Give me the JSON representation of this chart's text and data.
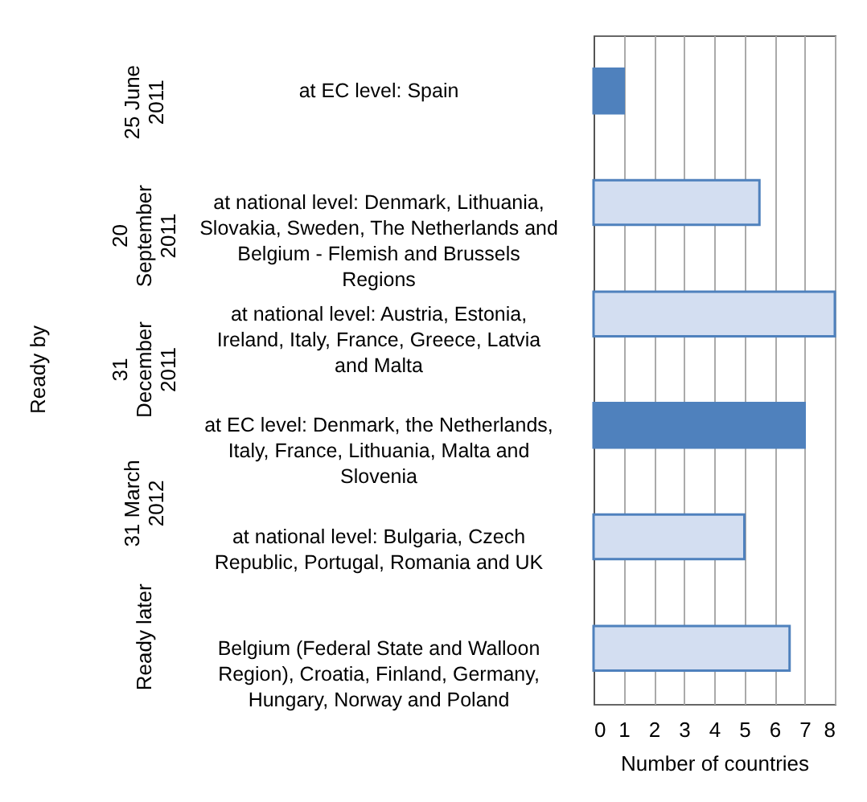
{
  "chart_data": {
    "type": "bar",
    "orientation": "horizontal",
    "xlabel": "Number of countries",
    "categories": [
      "at EC level: Spain",
      "at national level:  Denmark, Lithuania, Slovakia, Sweden, The Netherlands and Belgium - Flemish and Brussels Regions",
      "at national level: Austria, Estonia, Ireland, Italy, France, Greece, Latvia and Malta",
      "at EC level: Denmark, the Netherlands, Italy, France, Lithuania, Malta and Slovenia",
      "at national level: Bulgaria, Czech Republic, Portugal, Romania and UK",
      "Belgium (Federal State and Walloon Region),  Croatia, Finland, Germany, Hungary, Norway and Poland"
    ],
    "values": [
      1,
      5.5,
      8,
      7,
      5,
      6.5
    ],
    "colors": [
      "#4f81bd",
      "#d3def1",
      "#d3def1",
      "#4f81bd",
      "#d3def1",
      "#d3def1"
    ],
    "xlim": [
      0,
      8
    ],
    "xticks": [
      0,
      1,
      2,
      3,
      4,
      5,
      6,
      7,
      8
    ],
    "grid": "x",
    "annotations": [
      "Ready by",
      "25 June 2011",
      "20 September 2011",
      "31 December 2011",
      "31 March 2012",
      "Ready later"
    ]
  }
}
